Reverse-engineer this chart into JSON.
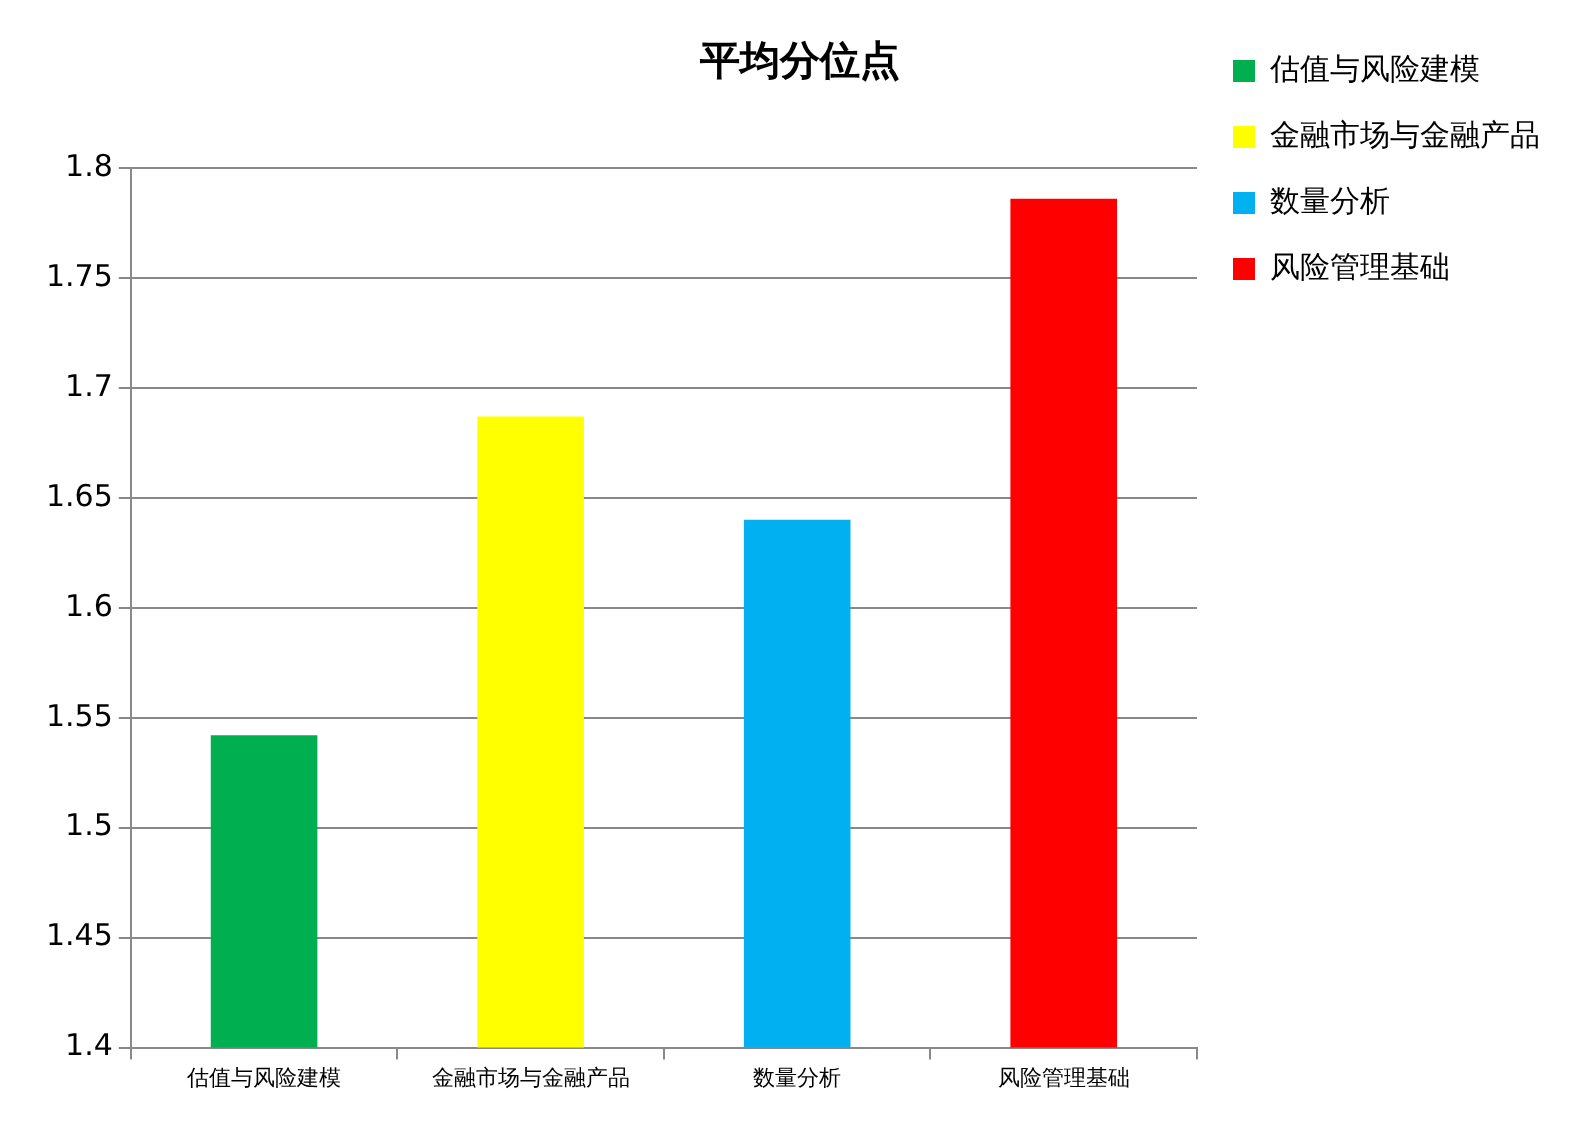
{
  "chart_data": {
    "type": "bar",
    "title": "平均分位点",
    "categories": [
      "估值与风险建模",
      "金融市场与金融产品",
      "数量分析",
      "风险管理基础"
    ],
    "series": [
      {
        "name": "估值与风险建模",
        "color": "#00b050",
        "values": [
          1.542,
          null,
          null,
          null
        ]
      },
      {
        "name": "金融市场与金融产品",
        "color": "#ffff00",
        "values": [
          null,
          1.687,
          null,
          null
        ]
      },
      {
        "name": "数量分析",
        "color": "#00b0f0",
        "values": [
          null,
          null,
          1.64,
          null
        ]
      },
      {
        "name": "风险管理基础",
        "color": "#ff0000",
        "values": [
          null,
          null,
          null,
          1.786
        ]
      }
    ],
    "ylim": [
      1.4,
      1.8
    ],
    "yticks": [
      1.4,
      1.45,
      1.5,
      1.55,
      1.6,
      1.65,
      1.7,
      1.75,
      1.8
    ],
    "grid": "y",
    "legend": "right"
  }
}
